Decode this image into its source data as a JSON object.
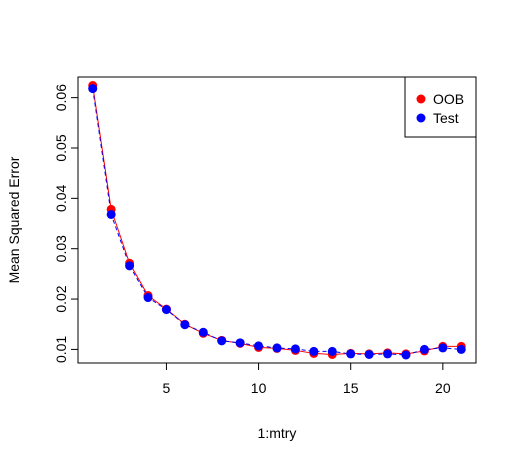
{
  "chart_data": {
    "type": "scatter",
    "title": "",
    "xlabel": "1:mtry",
    "ylabel": "Mean Squared Error",
    "xlim": [
      0.2,
      21.8
    ],
    "ylim": [
      0.0073,
      0.0641
    ],
    "xticks": [
      5,
      10,
      15,
      20
    ],
    "yticks": [
      0.01,
      0.02,
      0.03,
      0.04,
      0.05,
      0.06
    ],
    "ytick_labels": [
      "0.01",
      "0.02",
      "0.03",
      "0.04",
      "0.05",
      "0.06"
    ],
    "grid": false,
    "legend_position": "top-right",
    "x": [
      1,
      2,
      3,
      4,
      5,
      6,
      7,
      8,
      9,
      10,
      11,
      12,
      13,
      14,
      15,
      16,
      17,
      18,
      19,
      20,
      21
    ],
    "series": [
      {
        "name": "OOB",
        "color": "#ff0000",
        "line_style": "solid",
        "values": [
          0.0624,
          0.0378,
          0.0271,
          0.0207,
          0.018,
          0.015,
          0.0132,
          0.0118,
          0.0112,
          0.0104,
          0.0102,
          0.0098,
          0.0092,
          0.009,
          0.0092,
          0.0091,
          0.0093,
          0.0091,
          0.0097,
          0.0106,
          0.0106
        ]
      },
      {
        "name": "Test",
        "color": "#0000ff",
        "line_style": "dashed",
        "values": [
          0.0618,
          0.0368,
          0.0266,
          0.0203,
          0.0179,
          0.0149,
          0.0134,
          0.0117,
          0.0113,
          0.0107,
          0.0103,
          0.0101,
          0.0096,
          0.0096,
          0.0091,
          0.009,
          0.0091,
          0.0089,
          0.01,
          0.0103,
          0.01
        ]
      }
    ]
  }
}
